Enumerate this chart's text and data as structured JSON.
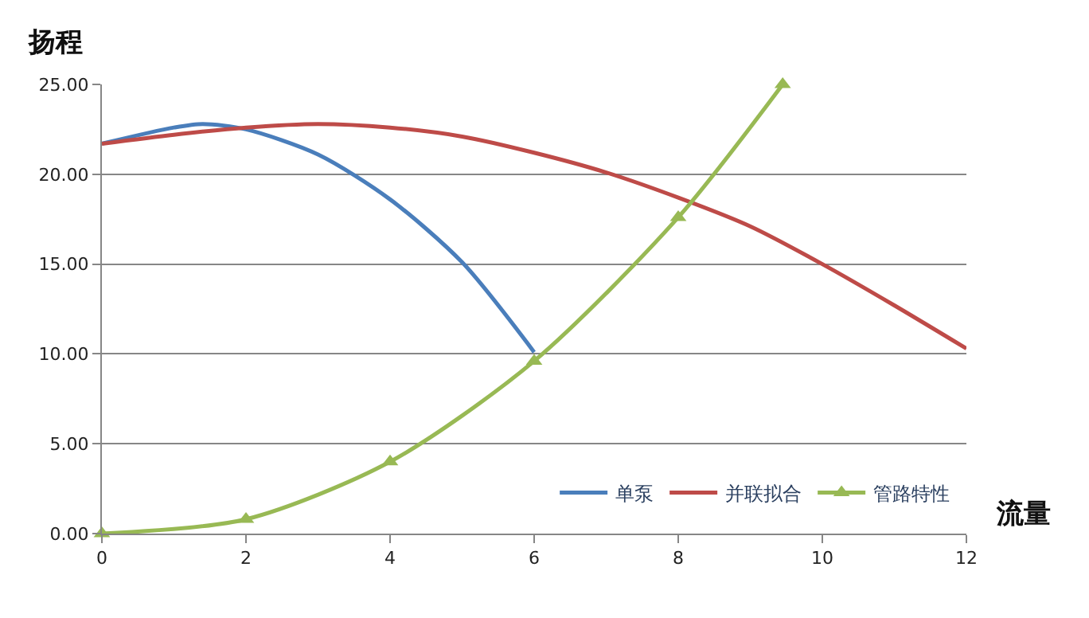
{
  "chart_data": {
    "type": "line",
    "title": "扬程",
    "xlabel": "流量",
    "xlim": [
      0,
      12
    ],
    "xticks": [
      0,
      2,
      4,
      6,
      8,
      10,
      12
    ],
    "ylim": [
      0,
      25
    ],
    "yticks": [
      {
        "value": 0,
        "label": "0.00"
      },
      {
        "value": 5,
        "label": "5.00"
      },
      {
        "value": 10,
        "label": "10.00"
      },
      {
        "value": 15,
        "label": "15.00"
      },
      {
        "value": 20,
        "label": "20.00"
      },
      {
        "value": 25,
        "label": "25.00"
      }
    ],
    "grid": "y",
    "legend": "bottom right",
    "series": [
      {
        "name": "单泵",
        "color": "#4a7ebb",
        "marker": "none",
        "x": [
          0,
          1,
          1.4,
          2,
          3,
          4,
          5,
          6
        ],
        "values": [
          21.7,
          22.6,
          22.8,
          22.5,
          21.1,
          18.6,
          15.1,
          10.1
        ]
      },
      {
        "name": "并联拟合",
        "color": "#be4b48",
        "marker": "none",
        "x": [
          0,
          1,
          2,
          3,
          4,
          5,
          6,
          7,
          8,
          9,
          10,
          11,
          12
        ],
        "values": [
          21.7,
          22.2,
          22.6,
          22.8,
          22.6,
          22.1,
          21.2,
          20.1,
          18.7,
          17.1,
          15.0,
          12.7,
          10.3
        ]
      },
      {
        "name": "管路特性",
        "color": "#98b954",
        "marker": "triangle",
        "x": [
          0,
          2,
          4,
          6,
          8,
          9.45
        ],
        "values": [
          0,
          0.8,
          4.0,
          9.6,
          17.6,
          25
        ]
      }
    ]
  }
}
